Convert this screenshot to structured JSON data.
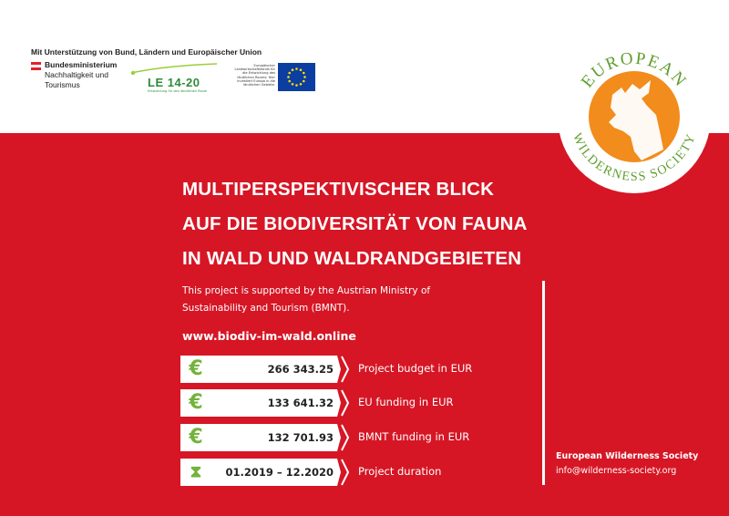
{
  "header": {
    "support_line": "Mit Unterstützung von Bund, Ländern und Europäischer Union",
    "ministry_line1": "Bundesministerium",
    "ministry_line2": "Nachhaltigkeit und",
    "ministry_line3": "Tourismus",
    "le_logo_text": "LE 14-20",
    "le_logo_subtext": "Entwicklung für den ländlichen Raum",
    "eafrd_text": "Europäischer Landwirtschaftsfonds für die Entwicklung des ländlichen Raums: Hier investiert Europa in die ländlichen Gebiete."
  },
  "org_logo": {
    "arc_top": "EUROPEAN",
    "arc_bottom": "WILDERNESS SOCIETY",
    "accent_color": "#f28c1c",
    "text_color": "#5f9e2f"
  },
  "title": {
    "line1": "MULTIPERSPEKTIVISCHER BLICK",
    "line2": "AUF DIE BIODIVERSITÄT VON FAUNA",
    "line3": "IN WALD UND WALDRANDGEBIETEN"
  },
  "support_text": "This project is supported by the Austrian Ministry of Sustainability and Tourism (BMNT).",
  "website": "www.biodiv-im-wald.online",
  "facts": [
    {
      "icon": "euro-icon",
      "glyph": "€",
      "value": "266 343.25",
      "label": "Project budget in EUR"
    },
    {
      "icon": "euro-icon",
      "glyph": "€",
      "value": "133 641.32",
      "label": "EU funding in EUR"
    },
    {
      "icon": "euro-icon",
      "glyph": "€",
      "value": "132 701.93",
      "label": "BMNT funding in EUR"
    },
    {
      "icon": "hourglass-icon",
      "glyph": "⧗",
      "value": "01.2019 – 12.2020",
      "label": "Project duration"
    }
  ],
  "contact": {
    "name": "European Wilderness Society",
    "email": "info@wilderness-society.org"
  },
  "colors": {
    "background_red": "#d61625",
    "icon_green": "#72b33a"
  }
}
